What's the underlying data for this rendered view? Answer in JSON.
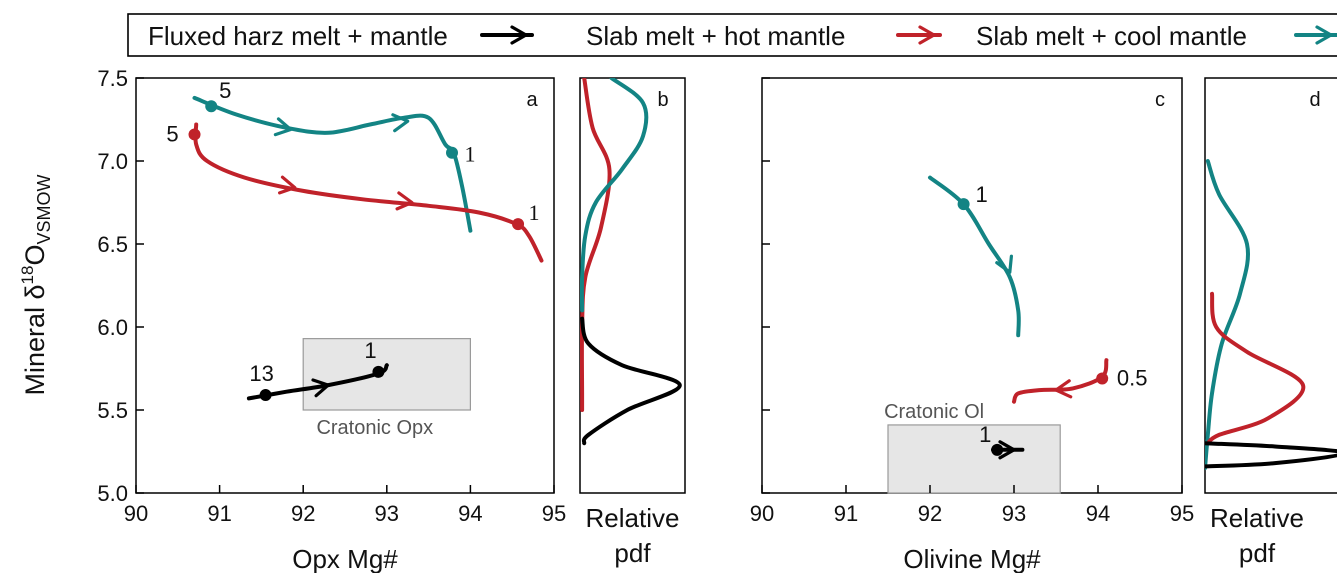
{
  "colors": {
    "fluxed": "#000000",
    "hot": "#c0222a",
    "cool": "#138484",
    "box": "#e6e6e6",
    "box_edge": "#9a9a9a",
    "label_gray": "#555555"
  },
  "legend": {
    "position": "top",
    "entries": [
      {
        "label": "Fluxed harz melt + mantle",
        "series": "fluxed"
      },
      {
        "label": "Slab melt + hot mantle",
        "series": "hot"
      },
      {
        "label": "Slab melt + cool mantle",
        "series": "cool"
      }
    ]
  },
  "shared": {
    "ylabel_main": "Mineral δ",
    "ylabel_sup": "18",
    "ylabel_tail": "O",
    "ylabel_sub": "VSMOW"
  },
  "chart_data": [
    {
      "type": "line",
      "panel": "a",
      "xlabel": "Opx Mg#",
      "xlim": [
        90,
        95
      ],
      "ylim": [
        5.0,
        7.5
      ],
      "xticks": [
        "90",
        "91",
        "92",
        "93",
        "94",
        "95"
      ],
      "yticks": [
        "5.0",
        "5.5",
        "6.0",
        "6.5",
        "7.0",
        "7.5"
      ],
      "shaded_region": {
        "label": "Cratonic Opx",
        "x": [
          92,
          94
        ],
        "y": [
          5.5,
          5.93
        ]
      },
      "series": [
        {
          "id": "cool",
          "points": [
            [
              90.7,
              7.38
            ],
            [
              91.2,
              7.28
            ],
            [
              91.8,
              7.2
            ],
            [
              92.3,
              7.17
            ],
            [
              92.8,
              7.22
            ],
            [
              93.2,
              7.26
            ],
            [
              93.5,
              7.26
            ],
            [
              93.7,
              7.1
            ],
            [
              93.8,
              7.05
            ],
            [
              93.9,
              6.85
            ],
            [
              94.0,
              6.58
            ]
          ],
          "markers": [
            {
              "x": 90.9,
              "y": 7.33,
              "label": "5"
            },
            {
              "x": 93.78,
              "y": 7.05,
              "label": "1"
            }
          ],
          "arrows": [
            [
              91.85,
              7.19
            ],
            [
              93.25,
              7.24
            ]
          ]
        },
        {
          "id": "hot",
          "points": [
            [
              90.72,
              7.22
            ],
            [
              90.72,
              7.1
            ],
            [
              90.85,
              7.0
            ],
            [
              91.3,
              6.9
            ],
            [
              92.0,
              6.82
            ],
            [
              92.7,
              6.77
            ],
            [
              93.5,
              6.73
            ],
            [
              94.1,
              6.69
            ],
            [
              94.55,
              6.62
            ],
            [
              94.7,
              6.55
            ],
            [
              94.85,
              6.4
            ]
          ],
          "markers": [
            {
              "x": 90.7,
              "y": 7.16,
              "label": "5"
            },
            {
              "x": 94.57,
              "y": 6.62,
              "label": "1"
            }
          ],
          "arrows": [
            [
              91.9,
              6.84
            ],
            [
              93.3,
              6.75
            ]
          ]
        },
        {
          "id": "fluxed",
          "points": [
            [
              91.35,
              5.57
            ],
            [
              91.8,
              5.61
            ],
            [
              92.3,
              5.65
            ],
            [
              92.9,
              5.72
            ],
            [
              93.0,
              5.77
            ]
          ],
          "markers": [
            {
              "x": 91.55,
              "y": 5.59,
              "label": "13"
            },
            {
              "x": 92.9,
              "y": 5.73,
              "label": "1"
            }
          ],
          "arrows": [
            [
              92.3,
              5.65
            ]
          ]
        }
      ]
    },
    {
      "type": "line",
      "panel": "b",
      "xlabel_line1": "Relative",
      "xlabel_line2": "pdf",
      "xlim": [
        0,
        1
      ],
      "ylim": [
        5.0,
        7.5
      ],
      "series": [
        {
          "id": "hot",
          "points": [
            [
              0.04,
              7.5
            ],
            [
              0.12,
              7.2
            ],
            [
              0.28,
              6.95
            ],
            [
              0.2,
              6.6
            ],
            [
              0.05,
              6.3
            ],
            [
              0.02,
              6.0
            ],
            [
              0.02,
              5.6
            ],
            [
              0.02,
              5.5
            ]
          ]
        },
        {
          "id": "cool",
          "points": [
            [
              0.3,
              7.5
            ],
            [
              0.6,
              7.35
            ],
            [
              0.6,
              7.15
            ],
            [
              0.4,
              6.95
            ],
            [
              0.15,
              6.75
            ],
            [
              0.05,
              6.55
            ],
            [
              0.02,
              6.3
            ],
            [
              0.02,
              6.1
            ]
          ]
        },
        {
          "id": "fluxed",
          "points": [
            [
              0.02,
              6.05
            ],
            [
              0.08,
              5.9
            ],
            [
              0.4,
              5.77
            ],
            [
              0.95,
              5.65
            ],
            [
              0.45,
              5.5
            ],
            [
              0.08,
              5.35
            ],
            [
              0.04,
              5.3
            ]
          ]
        }
      ]
    },
    {
      "type": "line",
      "panel": "c",
      "xlabel": "Olivine Mg#",
      "xlim": [
        90,
        95
      ],
      "ylim": [
        5.0,
        7.5
      ],
      "xticks": [
        "90",
        "91",
        "92",
        "93",
        "94",
        "95"
      ],
      "shaded_region": {
        "label": "Cratonic Ol",
        "x": [
          91.5,
          93.55
        ],
        "y": [
          5.0,
          5.41
        ]
      },
      "series": [
        {
          "id": "cool",
          "points": [
            [
              92.0,
              6.9
            ],
            [
              92.4,
              6.74
            ],
            [
              92.7,
              6.5
            ],
            [
              92.95,
              6.3
            ],
            [
              93.05,
              6.1
            ],
            [
              93.05,
              5.95
            ]
          ],
          "markers": [
            {
              "x": 92.4,
              "y": 6.74,
              "label": "1"
            }
          ],
          "arrows": [
            [
              92.95,
              6.33
            ]
          ]
        },
        {
          "id": "hot",
          "points": [
            [
              94.1,
              5.8
            ],
            [
              94.05,
              5.7
            ],
            [
              93.7,
              5.63
            ],
            [
              93.3,
              5.62
            ],
            [
              93.05,
              5.6
            ],
            [
              93.0,
              5.55
            ]
          ],
          "markers": [
            {
              "x": 94.05,
              "y": 5.69,
              "label": "0.5"
            }
          ],
          "arrows": [
            [
              93.5,
              5.62
            ]
          ]
        },
        {
          "id": "fluxed",
          "points": [
            [
              92.75,
              5.26
            ],
            [
              93.1,
              5.26
            ]
          ],
          "markers": [
            {
              "x": 92.8,
              "y": 5.26,
              "label": "1"
            }
          ],
          "arrows": [
            [
              93.0,
              5.26
            ]
          ]
        }
      ]
    },
    {
      "type": "line",
      "panel": "d",
      "xlabel_line1": "Relative",
      "xlabel_line2": "pdf",
      "xlim": [
        0,
        1
      ],
      "ylim": [
        5.0,
        7.5
      ],
      "series": [
        {
          "id": "cool",
          "points": [
            [
              0.02,
              7.0
            ],
            [
              0.1,
              6.8
            ],
            [
              0.3,
              6.5
            ],
            [
              0.25,
              6.2
            ],
            [
              0.12,
              5.9
            ],
            [
              0.05,
              5.6
            ],
            [
              0.02,
              5.35
            ],
            [
              0.0,
              5.15
            ]
          ]
        },
        {
          "id": "hot",
          "points": [
            [
              0.05,
              6.2
            ],
            [
              0.08,
              6.0
            ],
            [
              0.3,
              5.85
            ],
            [
              0.7,
              5.65
            ],
            [
              0.45,
              5.45
            ],
            [
              0.1,
              5.35
            ],
            [
              0.02,
              5.3
            ]
          ]
        },
        {
          "id": "fluxed",
          "points": [
            [
              0.0,
              5.3
            ],
            [
              0.5,
              5.28
            ],
            [
              1.0,
              5.24
            ],
            [
              0.5,
              5.18
            ],
            [
              0.0,
              5.16
            ]
          ]
        }
      ]
    }
  ]
}
